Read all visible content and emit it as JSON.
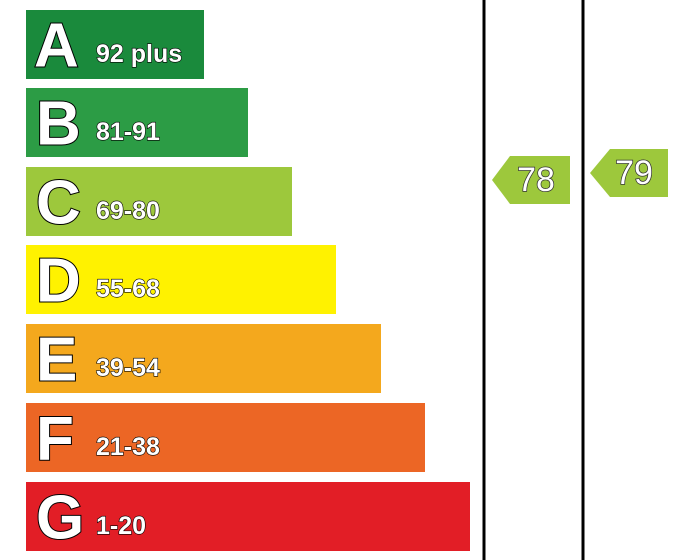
{
  "bands": [
    {
      "letter": "A",
      "range": "92 plus"
    },
    {
      "letter": "B",
      "range": "81-91"
    },
    {
      "letter": "C",
      "range": "69-80"
    },
    {
      "letter": "D",
      "range": "55-68"
    },
    {
      "letter": "E",
      "range": "39-54"
    },
    {
      "letter": "F",
      "range": "21-38"
    },
    {
      "letter": "G",
      "range": "1-20"
    }
  ],
  "current_rating": 78,
  "potential_rating": 79
}
